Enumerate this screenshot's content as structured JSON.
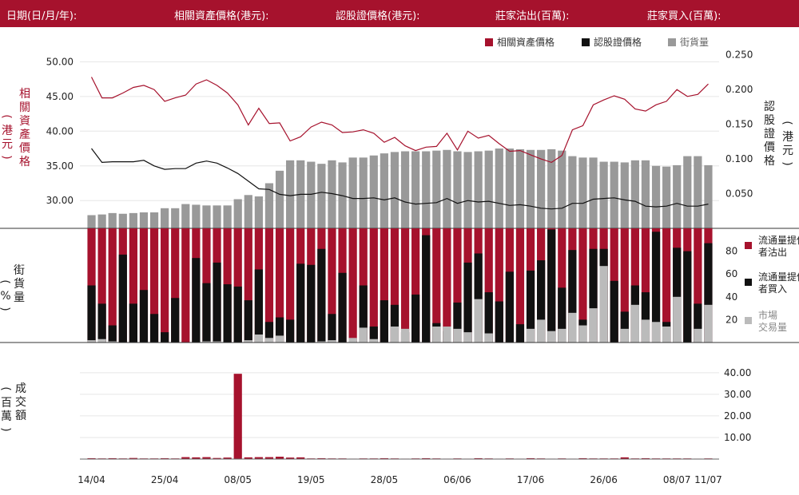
{
  "header": {
    "date_label": "日期(日/月/年):",
    "underlying_label": "相關資產價格(港元):",
    "warrant_label": "認股證價格(港元):",
    "mm_sell_label": "莊家沽出(百萬):",
    "mm_buy_label": "莊家買入(百萬):"
  },
  "legend_top": [
    {
      "label": "相關資產價格",
      "color": "#a6122d"
    },
    {
      "label": "認股證價格",
      "color": "#111111"
    },
    {
      "label": "街貨量",
      "color": "#999999"
    }
  ],
  "legend_mid": [
    {
      "label": "流通量提供者沽出",
      "color": "#a6122d"
    },
    {
      "label": "流通量提供者買入",
      "color": "#111111"
    },
    {
      "label": "市場交易量",
      "color": "#bbbbbb"
    }
  ],
  "axis_labels": {
    "left_top": "相關資產價格(港元)",
    "right_top": "認股證價格(港元)",
    "left_mid": "街貨量(%)",
    "left_bottom": "成交額(百萬)"
  },
  "chart_data": [
    {
      "type": "line",
      "panel": "price",
      "x_tick_labels": [
        "14/04",
        "25/04",
        "08/05",
        "19/05",
        "28/05",
        "06/06",
        "17/06",
        "26/06",
        "08/07",
        "11/07"
      ],
      "left_axis": {
        "ticks": [
          "30.00",
          "35.00",
          "40.00",
          "45.00",
          "50.00"
        ],
        "ylim": [
          26,
          52
        ]
      },
      "right_axis": {
        "ticks": [
          "0.050",
          "0.100",
          "0.150",
          "0.200",
          "0.250"
        ],
        "ylim": [
          0.0,
          0.26
        ]
      },
      "grid": true,
      "series": [
        {
          "name": "相關資產價格",
          "axis": "left",
          "color": "#a6122d",
          "values": [
            47.8,
            44.8,
            44.8,
            45.5,
            46.3,
            46.6,
            46.0,
            44.3,
            44.8,
            45.2,
            46.8,
            47.4,
            46.6,
            45.5,
            43.8,
            40.9,
            43.3,
            41.1,
            41.2,
            38.6,
            39.2,
            40.6,
            41.3,
            40.9,
            39.8,
            39.9,
            40.2,
            39.7,
            38.4,
            39.1,
            37.9,
            37.2,
            37.7,
            37.8,
            39.7,
            37.3,
            40.0,
            39.0,
            39.4,
            38.2,
            37.1,
            37.2,
            36.6,
            36.0,
            35.5,
            36.5,
            40.2,
            40.8,
            43.8,
            44.5,
            45.1,
            44.6,
            43.2,
            42.9,
            43.8,
            44.3,
            46.0,
            45.0,
            45.3,
            46.8
          ]
        },
        {
          "name": "認股證價格",
          "axis": "right",
          "color": "#111111",
          "values": [
            0.115,
            0.095,
            0.096,
            0.096,
            0.096,
            0.098,
            0.09,
            0.085,
            0.086,
            0.086,
            0.094,
            0.097,
            0.094,
            0.087,
            0.079,
            0.068,
            0.057,
            0.056,
            0.049,
            0.047,
            0.049,
            0.049,
            0.052,
            0.05,
            0.047,
            0.043,
            0.043,
            0.044,
            0.041,
            0.044,
            0.038,
            0.035,
            0.036,
            0.037,
            0.043,
            0.036,
            0.04,
            0.038,
            0.039,
            0.036,
            0.033,
            0.034,
            0.032,
            0.029,
            0.028,
            0.029,
            0.036,
            0.036,
            0.042,
            0.043,
            0.044,
            0.041,
            0.039,
            0.032,
            0.031,
            0.032,
            0.036,
            0.032,
            0.032,
            0.035
          ]
        },
        {
          "name": "街貨量",
          "axis": "right",
          "type": "bar",
          "color": "#999999",
          "values": [
            0.019,
            0.02,
            0.022,
            0.021,
            0.022,
            0.023,
            0.023,
            0.029,
            0.029,
            0.035,
            0.034,
            0.033,
            0.033,
            0.033,
            0.042,
            0.048,
            0.046,
            0.065,
            0.083,
            0.098,
            0.098,
            0.096,
            0.093,
            0.098,
            0.095,
            0.102,
            0.102,
            0.105,
            0.108,
            0.11,
            0.111,
            0.111,
            0.111,
            0.112,
            0.113,
            0.111,
            0.11,
            0.111,
            0.112,
            0.115,
            0.115,
            0.114,
            0.113,
            0.113,
            0.114,
            0.112,
            0.104,
            0.102,
            0.102,
            0.096,
            0.096,
            0.095,
            0.098,
            0.098,
            0.09,
            0.089,
            0.091,
            0.104,
            0.104,
            0.091
          ]
        }
      ]
    },
    {
      "type": "bar",
      "panel": "market_maker",
      "ylabel": "街貨量(%)",
      "y_ticks": [
        "20",
        "40",
        "60",
        "80"
      ],
      "ylim": [
        0,
        100
      ],
      "series": [
        {
          "name": "流通量提供者沽出",
          "color": "#a6122d",
          "values": [
            100,
            100,
            100,
            100,
            100,
            100,
            100,
            100,
            100,
            100,
            100,
            100,
            100,
            100,
            100,
            100,
            100,
            100,
            100,
            100,
            100,
            100,
            100,
            100,
            100,
            100,
            100,
            100,
            100,
            100,
            100,
            100,
            100,
            100,
            100,
            100,
            100,
            100,
            100,
            100,
            100,
            100,
            100,
            100,
            100,
            100,
            100,
            100,
            100,
            100,
            100,
            100,
            100,
            100,
            100,
            100,
            100,
            100,
            100,
            100
          ]
        },
        {
          "name": "流通量提供者買入",
          "color": "#111111",
          "values": [
            50,
            34,
            15,
            77,
            34,
            46,
            25,
            9,
            39,
            0,
            74,
            52,
            70,
            51,
            49,
            37,
            64,
            18,
            22,
            20,
            69,
            68,
            82,
            25,
            61,
            1,
            50,
            14,
            37,
            33,
            9,
            42,
            94,
            17,
            10,
            35,
            70,
            78,
            44,
            36,
            62,
            16,
            63,
            72,
            99,
            48,
            81,
            20,
            82,
            82,
            54,
            27,
            50,
            44,
            97,
            18,
            83,
            80,
            34,
            87
          ]
        },
        {
          "name": "市場交易量",
          "color": "#bbbbbb",
          "values": [
            2,
            3,
            1,
            0,
            0,
            0,
            0,
            0,
            0,
            0,
            0,
            1,
            1,
            0,
            0,
            2,
            7,
            4,
            6,
            0,
            0,
            0,
            1,
            2,
            0,
            4,
            13,
            3,
            0,
            14,
            12,
            0,
            0,
            14,
            14,
            12,
            9,
            38,
            8,
            0,
            0,
            0,
            12,
            20,
            10,
            12,
            26,
            15,
            30,
            67,
            0,
            12,
            33,
            20,
            18,
            14,
            40,
            0,
            12,
            33
          ]
        }
      ]
    },
    {
      "type": "bar",
      "panel": "turnover",
      "ylabel": "成交額(百萬)",
      "y_ticks": [
        "10.00",
        "20.00",
        "30.00",
        "40.00"
      ],
      "ylim": [
        0,
        44
      ],
      "series": [
        {
          "name": "成交額",
          "color": "#a6122d",
          "values": [
            0.4,
            0.3,
            0.4,
            0.3,
            0.5,
            0.3,
            0.3,
            0.4,
            0.3,
            0.9,
            0.8,
            0.9,
            0.5,
            0.7,
            39.5,
            0.8,
            0.9,
            0.9,
            1.1,
            0.7,
            0.8,
            0.3,
            0.4,
            0.3,
            0.3,
            0.2,
            0.3,
            0.3,
            0.4,
            0.3,
            0.2,
            0.3,
            0.4,
            0.3,
            0.2,
            0.3,
            0.2,
            0.4,
            0.3,
            0.2,
            0.3,
            0.2,
            0.4,
            0.3,
            0.2,
            0.3,
            0.2,
            0.4,
            0.3,
            0.3,
            0.3,
            0.8,
            0.3,
            0.4,
            0.3,
            0.3,
            0.3,
            0.3,
            0.2,
            0.3
          ]
        }
      ]
    }
  ]
}
